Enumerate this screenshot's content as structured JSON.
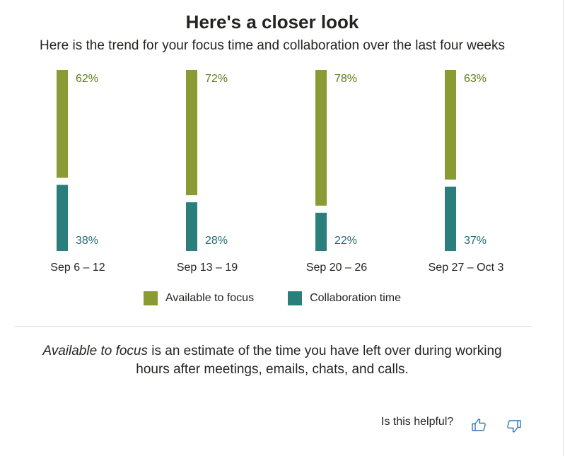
{
  "header": {
    "title": "Here's a closer look",
    "subtitle": "Here is the trend for your focus time and collaboration over the last four weeks"
  },
  "colors": {
    "focus": "#8a9b34",
    "collaboration": "#2a7f7d",
    "focus_label": "#5e7c1a",
    "collaboration_label": "#256a73",
    "icon": "#2f74b5"
  },
  "chart_data": {
    "type": "bar",
    "stacked": true,
    "orientation": "vertical",
    "categories": [
      "Sep 6 – 12",
      "Sep 13 – 19",
      "Sep 20 – 26",
      "Sep 27 – Oct 3"
    ],
    "series": [
      {
        "name": "Available to focus",
        "values": [
          62,
          72,
          78,
          63
        ],
        "labels": [
          "62%",
          "72%",
          "78%",
          "63%"
        ]
      },
      {
        "name": "Collaboration time",
        "values": [
          38,
          28,
          22,
          37
        ],
        "labels": [
          "38%",
          "28%",
          "22%",
          "37%"
        ]
      }
    ],
    "ylim": [
      0,
      100
    ],
    "unit": "%",
    "grid": false,
    "legend": "bottom"
  },
  "legend": {
    "focus_label": "Available to focus",
    "collaboration_label": "Collaboration time"
  },
  "footnote": {
    "emphasis": "Available to focus",
    "line1_rest": " is an estimate of the time you have left over during working",
    "line2": "hours after meetings, emails, chats, and calls."
  },
  "feedback": {
    "question": "Is this helpful?",
    "thumbs_up_icon": "thumbs-up-icon",
    "thumbs_down_icon": "thumbs-down-icon"
  }
}
